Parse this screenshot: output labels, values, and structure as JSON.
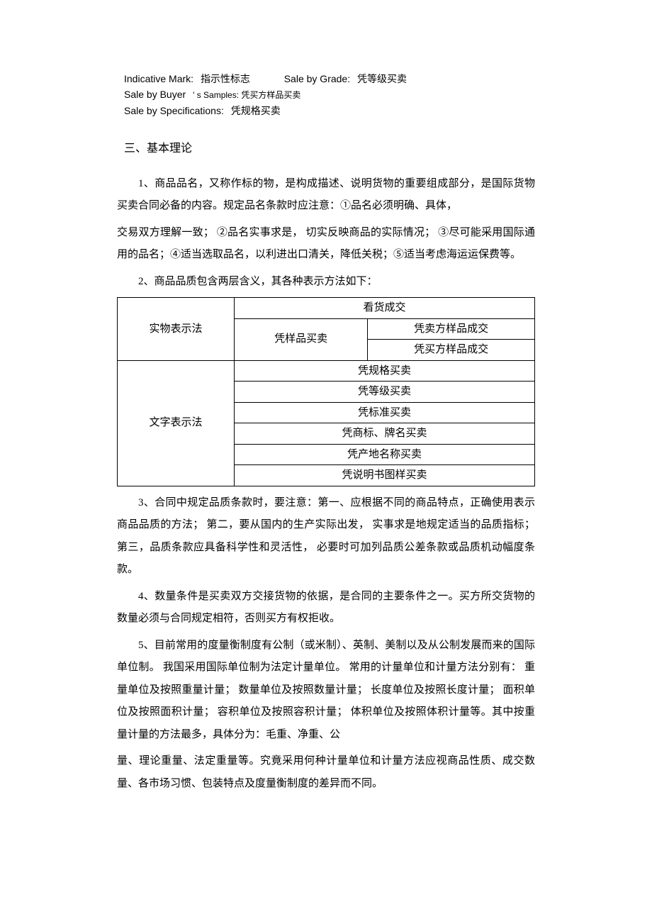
{
  "terms": {
    "line1_en1": "Indicative Mark:",
    "line1_zh1": "指示性标志",
    "line1_en2": "Sale by Grade:",
    "line1_zh2": "凭等级买卖",
    "line2_en": "Sale by Buyer",
    "line2_zh": "' s Samples: 凭买方样品买卖",
    "line3_en": "Sale by Specifications:",
    "line3_zh": "凭规格买卖"
  },
  "section_title": "三、基本理论",
  "para1": "1、商品品名，又称作标的物，是构成描述、说明货物的重要组成部分，是国际货物买卖合同必备的内容。规定品名条款时应注意：①品名必须明确、具体，",
  "para1b": "交易双方理解一致；  ②品名实事求是，  切实反映商品的实际情况；  ③尽可能采用国际通用的品名；④适当选取品名，以利进出口清关，降低关税；⑤适当考虑海运运保费等。",
  "para2_intro": "2、商品品质包含两层含义，其各种表示方法如下：",
  "table": {
    "r1c1": "实物表示法",
    "r1c2": "看货成交",
    "r2c2": "凭样品买卖",
    "r2c3": "凭卖方样品成交",
    "r3c3": "凭买方样品成交",
    "r4c1": "文字表示法",
    "r4c2": "凭规格买卖",
    "r5c2": "凭等级买卖",
    "r6c2": "凭标准买卖",
    "r7c2": "凭商标、牌名买卖",
    "r8c2": "凭产地名称买卖",
    "r9c2": "凭说明书图样买卖"
  },
  "para3": "3、合同中规定品质条款时，要注意：第一、应根据不同的商品特点，正确使用表示商品品质的方法；  第二，要从国内的生产实际出发，  实事求是地规定适当的品质指标；  第三，品质条款应具备科学性和灵活性，  必要时可加列品质公差条款或品质机动幅度条款。",
  "para4": "4、数量条件是买卖双方交接货物的依据，是合同的主要条件之一。买方所交货物的数量必须与合同规定相符，否则买方有权拒收。",
  "para5": "5、目前常用的度量衡制度有公制（或米制）、英制、美制以及从公制发展而来的国际单位制。  我国采用国际单位制为法定计量单位。  常用的计量单位和计量方法分别有：  重量单位及按照重量计量；  数量单位及按照数量计量；  长度单位及按照长度计量；  面积单位及按照面积计量；  容积单位及按照容积计量；  体积单位及按照体积计量等。其中按重量计量的方法最多，具体分为：毛重、净重、公",
  "para5b": "量、理论重量、法定重量等。究竟采用何种计量单位和计量方法应视商品性质、成交数量、各市场习惯、包装特点及度量衡制度的差异而不同。"
}
